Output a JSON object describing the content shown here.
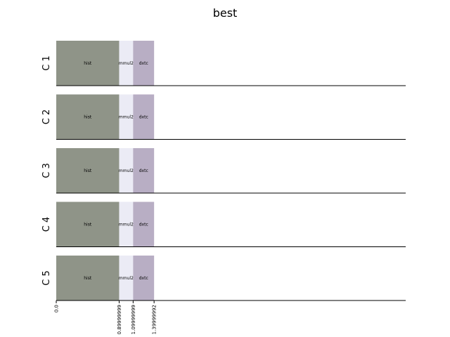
{
  "chart_data": {
    "type": "bar",
    "orientation": "horizontal-stacked-gantt",
    "title": "best",
    "rows": [
      "C 1",
      "C 2",
      "C 3",
      "C 4",
      "C 5"
    ],
    "segments": [
      {
        "name": "hist",
        "start": 0.0,
        "end": 0.89999999,
        "color": "#8f9488"
      },
      {
        "name": "mmul2",
        "start": 0.89999999,
        "end": 1.09999999,
        "color": "#ebebf5"
      },
      {
        "name": "dxtc",
        "start": 1.09999999,
        "end": 1.39999992,
        "color": "#b8aec4"
      }
    ],
    "x_ticks": [
      "0.0",
      "0.89999999",
      "1.09999999",
      "1.39999992"
    ],
    "xlim": [
      0,
      5.0
    ],
    "grid": false,
    "legend": "none"
  }
}
